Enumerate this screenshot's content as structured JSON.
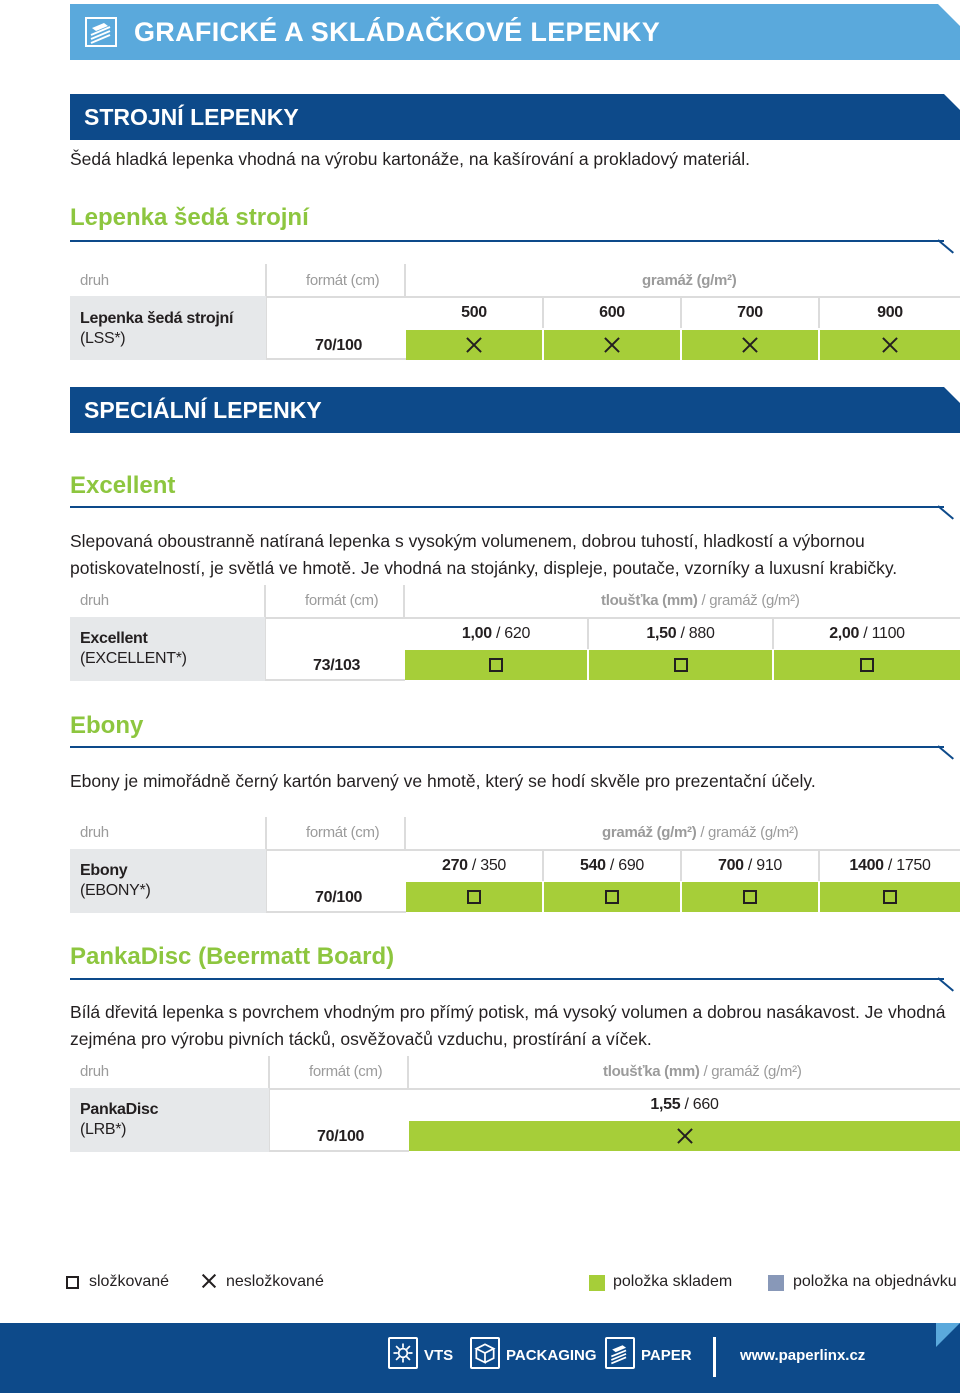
{
  "banner": {
    "title": "GRAFICKÉ A SKLÁDAČKOVÉ LEPENKY",
    "icon": "document-stack-icon"
  },
  "strojni": {
    "section_title": "STROJNÍ LEPENKY",
    "intro": "Šedá hladká lepenka vhodná na výrobu kartonáže, na kašírování a prokladový materiál.",
    "heading": "Lepenka šedá strojní",
    "table": {
      "h_druh": "druh",
      "h_format": "formát (cm)",
      "h_value": "gramáž (g/m²)",
      "name": "Lepenka šedá strojní",
      "code": "(LSS*)",
      "format": "70/100",
      "cols": [
        {
          "bold": "500",
          "rest": "",
          "symbol": "x"
        },
        {
          "bold": "600",
          "rest": "",
          "symbol": "x"
        },
        {
          "bold": "700",
          "rest": "",
          "symbol": "x"
        },
        {
          "bold": "900",
          "rest": "",
          "symbol": "x"
        }
      ]
    }
  },
  "specialni": {
    "section_title": "SPECIÁLNÍ LEPENKY"
  },
  "excellent": {
    "heading": "Excellent",
    "para": "Slepovaná oboustranně natíraná lepenka s vysokým volumenem, dobrou tuhostí, hladkostí a výbornou potiskovatelností, je světlá ve hmotě. Je vhodná na stojánky, displeje, poutače, vzorníky a luxusní krabičky.",
    "table": {
      "h_druh": "druh",
      "h_format": "formát (cm)",
      "h_value_bold": "tloušťka (mm)",
      "h_value_rest": " / gramáž (g/m²)",
      "name": "Excellent",
      "code": "(EXCELLENT*)",
      "format": "73/103",
      "cols": [
        {
          "bold": "1,00",
          "rest": " / 620",
          "symbol": "square"
        },
        {
          "bold": "1,50",
          "rest": " / 880",
          "symbol": "square"
        },
        {
          "bold": "2,00",
          "rest": " / 1100",
          "symbol": "square"
        }
      ]
    }
  },
  "ebony": {
    "heading": "Ebony",
    "para": "Ebony je mimořádně černý kartón barvený ve hmotě, který se hodí skvěle pro prezentační účely.",
    "table": {
      "h_druh": "druh",
      "h_format": "formát (cm)",
      "h_value_bold": "gramáž (g/m²)",
      "h_value_rest": " / gramáž (g/m²)",
      "name": "Ebony",
      "code": "(EBONY*)",
      "format": "70/100",
      "cols": [
        {
          "bold": "270",
          "rest": " / 350",
          "symbol": "square"
        },
        {
          "bold": "540",
          "rest": " / 690",
          "symbol": "square"
        },
        {
          "bold": "700",
          "rest": " / 910",
          "symbol": "square"
        },
        {
          "bold": "1400",
          "rest": " / 1750",
          "symbol": "square"
        }
      ]
    }
  },
  "panka": {
    "heading": "PankaDisc (Beermatt Board)",
    "para": "Bílá dřevitá lepenka s povrchem vhodným pro přímý potisk, má vysoký volumen a dobrou nasákavost. Je vhodná zejména pro výrobu pivních tácků, osvěžovačů vzduchu, prostírání a víček.",
    "table": {
      "h_druh": "druh",
      "h_format": "formát (cm)",
      "h_value_bold": "tloušťka (mm)",
      "h_value_rest": " / gramáž (g/m²)",
      "name": "PankaDisc",
      "code": "(LRB*)",
      "format": "70/100",
      "cols": [
        {
          "bold": "1,55",
          "rest": " / 660",
          "symbol": "x"
        }
      ]
    }
  },
  "legend": {
    "folded": "složkované",
    "unfolded": "nesložkované",
    "stock": "položka skladem",
    "order": "položka na objednávku",
    "stock_color": "#a6ce39",
    "order_color": "#8898b8"
  },
  "footer": {
    "items": [
      {
        "label": "VTS",
        "icon": "vts-gear-icon"
      },
      {
        "label": "PACKAGING",
        "icon": "packaging-box-icon"
      },
      {
        "label": "PAPER",
        "icon": "paper-stack-icon"
      }
    ],
    "url": "www.paperlinx.cz"
  },
  "colors": {
    "dark_blue": "#0d4a8a",
    "light_blue": "#5aa9dc",
    "green": "#a6ce39",
    "heading_green": "#8dc63f"
  }
}
